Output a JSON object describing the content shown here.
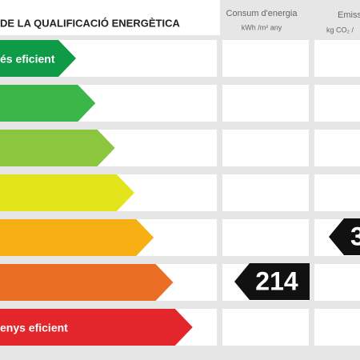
{
  "header": {
    "title": "DE LA QUALIFICACIÓ ENERGÈTICA",
    "columns": [
      {
        "title": "Consum d'energia",
        "unit": "kWh /m² any"
      },
      {
        "title": "Emiss",
        "unit": "kg CO₂ /"
      }
    ]
  },
  "scale": {
    "top_label": "és eficient",
    "bottom_label": "enys eficient",
    "colors": [
      "#0f9a48",
      "#3db649",
      "#8cc63e",
      "#e4e41c",
      "#f6b014",
      "#ea6f24",
      "#e3262b"
    ]
  },
  "energy_consumption": 214,
  "emissions": 3
}
